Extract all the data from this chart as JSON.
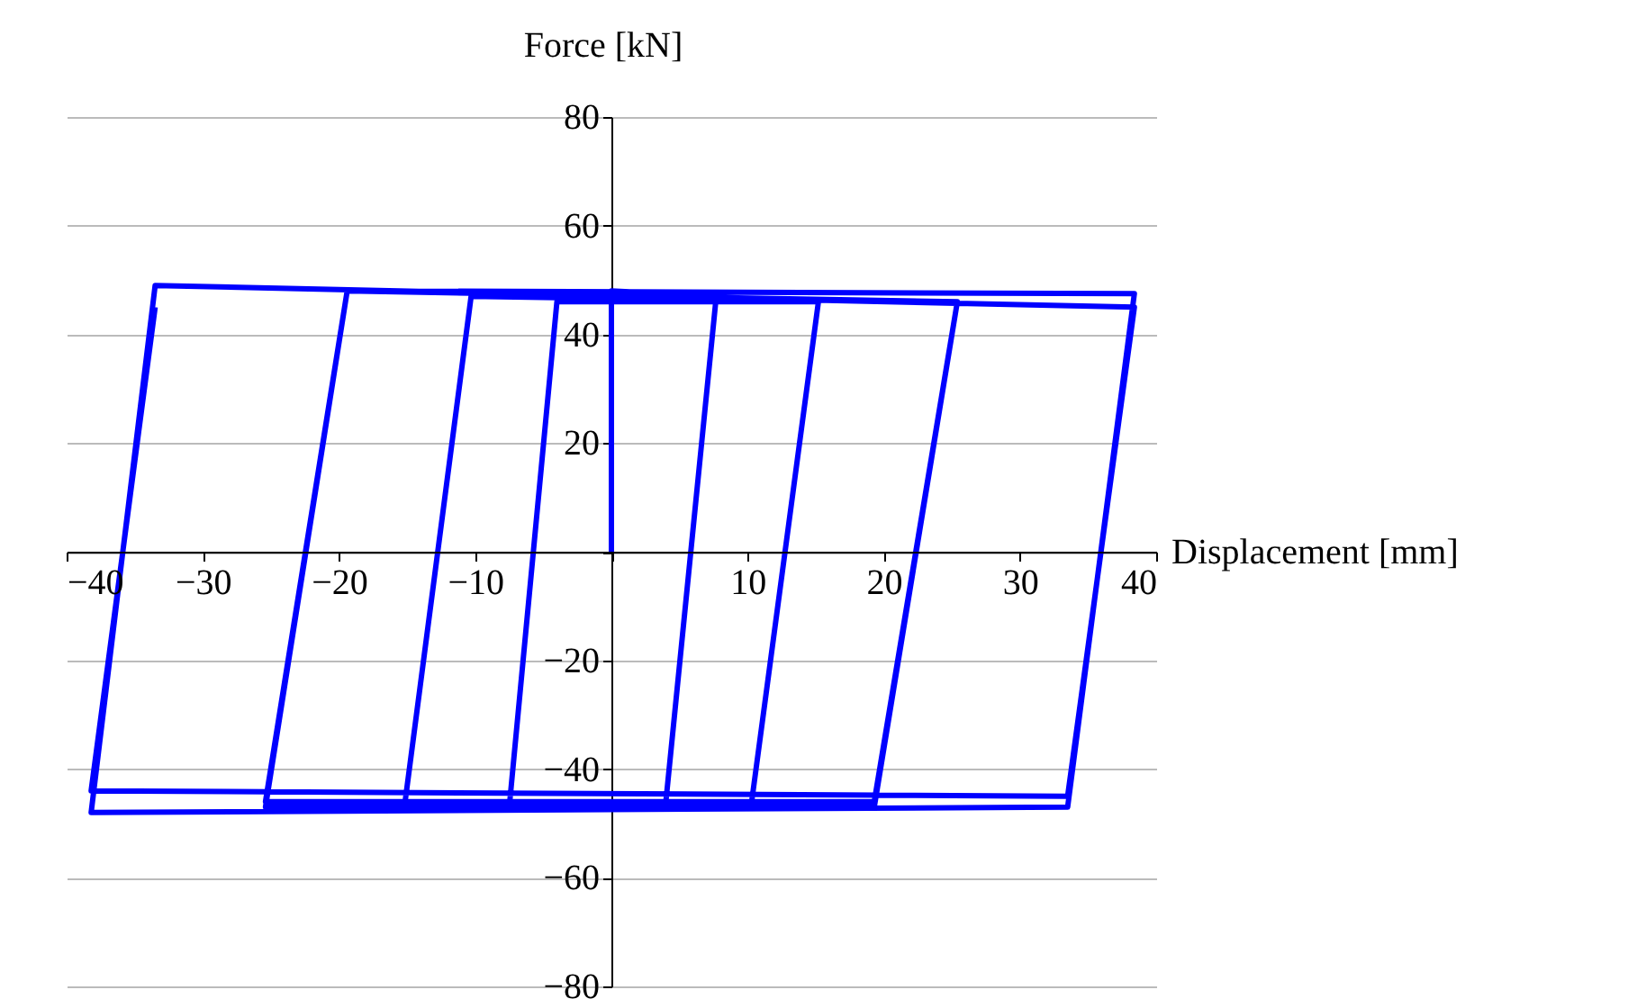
{
  "chart_data": {
    "type": "line",
    "xlabel": "Displacement [mm]",
    "ylabel": "Force [kN]",
    "xlim": [
      -40,
      40
    ],
    "ylim": [
      -80,
      80
    ],
    "xticks": [
      -40,
      -30,
      -20,
      -10,
      {
        "value": 0,
        "label": null
      },
      10,
      20,
      30,
      40
    ],
    "yticks": [
      -80,
      -60,
      -40,
      -20,
      {
        "value": 0,
        "label": null
      },
      20,
      40,
      60,
      80
    ],
    "grid": "y",
    "marker": "none",
    "line_style": "solid",
    "series": [
      {
        "color": "#0000ff",
        "x": [
          0,
          0,
          7.7,
          4,
          -7.5,
          -4,
          7.7,
          4,
          -7.5,
          -4,
          15.2,
          10.3,
          -15.2,
          -10.3,
          15.2,
          10.3,
          -15.2,
          -10.3,
          25.4,
          19.3,
          -25.4,
          -19.4,
          25.4,
          19.3,
          -25.4,
          -19.4,
          38.4,
          33.5,
          -38.2,
          -33.5,
          38.4,
          33.5,
          -38.2,
          -33.5
        ],
        "values": [
          0,
          48,
          47,
          -46,
          -47,
          46,
          47,
          -46,
          -47,
          46,
          46,
          -46,
          -47,
          47,
          46,
          -46,
          -47,
          47,
          46,
          -46,
          -46,
          48,
          46,
          -47,
          -47,
          48,
          47.5,
          -47,
          -48,
          49,
          45,
          -45,
          -44,
          45
        ]
      }
    ]
  }
}
